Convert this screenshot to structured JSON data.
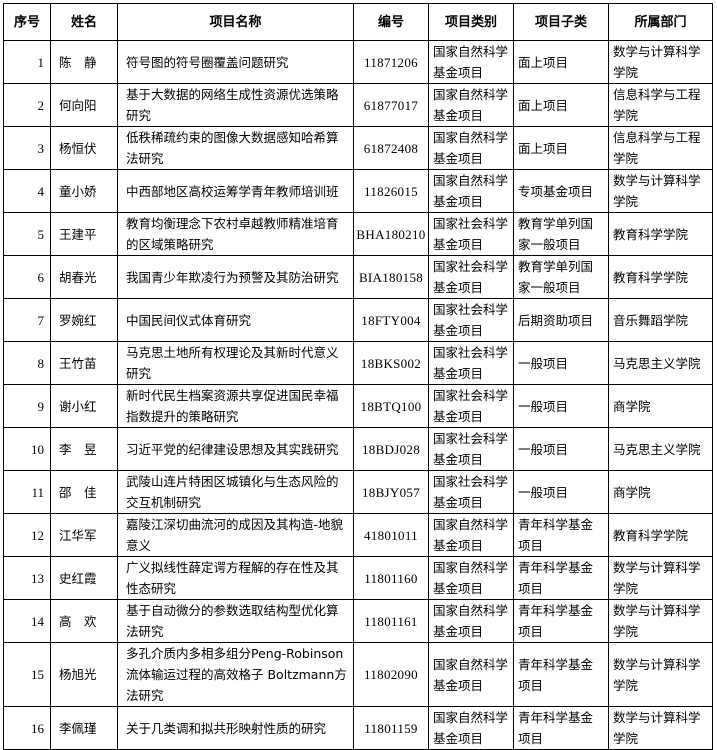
{
  "headers": [
    "序号",
    "姓名",
    "项目名称",
    "编号",
    "项目类别",
    "项目子类",
    "所属部门"
  ],
  "rows": [
    {
      "no": "1",
      "name": "陈　静",
      "title": "符号图的符号圈覆盖问题研究",
      "code": "11871206",
      "category": "国家自然科学基金项目",
      "subcategory": "面上项目",
      "dept": "数学与计算科学学院"
    },
    {
      "no": "2",
      "name": "何向阳",
      "title": "基于大数据的网络生成性资源优选策略研究",
      "code": "61877017",
      "category": "国家自然科学基金项目",
      "subcategory": "面上项目",
      "dept": "信息科学与工程学院"
    },
    {
      "no": "3",
      "name": "杨恒伏",
      "title": "低秩稀疏约束的图像大数据感知哈希算法研究",
      "code": "61872408",
      "category": "国家自然科学基金项目",
      "subcategory": "面上项目",
      "dept": "信息科学与工程学院"
    },
    {
      "no": "4",
      "name": "童小娇",
      "title": "中西部地区高校运筹学青年教师培训班",
      "code": "11826015",
      "category": "国家自然科学基金项目",
      "subcategory": "专项基金项目",
      "dept": "数学与计算科学学院"
    },
    {
      "no": "5",
      "name": "王建平",
      "title": "教育均衡理念下农村卓越教师精准培育的区域策略研究",
      "code": "BHA180210",
      "category": "国家社会科学基金项目",
      "subcategory": "教育学单列国家一般项目",
      "dept": "教育科学学院"
    },
    {
      "no": "6",
      "name": "胡春光",
      "title": "我国青少年欺凌行为预警及其防治研究",
      "code": "BIA180158",
      "category": "国家社会科学基金项目",
      "subcategory": "教育学单列国家一般项目",
      "dept": "教育科学学院"
    },
    {
      "no": "7",
      "name": "罗婉红",
      "title": "中国民间仪式体育研究",
      "code": "18FTY004",
      "category": "国家社会科学基金项目",
      "subcategory": "后期资助项目",
      "dept": "音乐舞蹈学院"
    },
    {
      "no": "8",
      "name": "王竹苗",
      "title": "马克思土地所有权理论及其新时代意义研究",
      "code": "18BKS002",
      "category": "国家社会科学基金项目",
      "subcategory": "一般项目",
      "dept": "马克思主义学院"
    },
    {
      "no": "9",
      "name": "谢小红",
      "title": "新时代民生档案资源共享促进国民幸福指数提升的策略研究",
      "code": "18BTQ100",
      "category": "国家社会科学基金项目",
      "subcategory": "一般项目",
      "dept": "商学院"
    },
    {
      "no": "10",
      "name": "李　昱",
      "title": "习近平党的纪律建设思想及其实践研究",
      "code": "18BDJ028",
      "category": "国家社会科学基金项目",
      "subcategory": "一般项目",
      "dept": "马克思主义学院"
    },
    {
      "no": "11",
      "name": "邵　佳",
      "title": "武陵山连片特困区城镇化与生态风险的交互机制研究",
      "code": "18BJY057",
      "category": "国家社会科学基金项目",
      "subcategory": "一般项目",
      "dept": "商学院"
    },
    {
      "no": "12",
      "name": "江华军",
      "title": "嘉陵江深切曲流河的成因及其构造-地貌意义",
      "code": "41801011",
      "category": "国家自然科学基金项目",
      "subcategory": "青年科学基金项目",
      "dept": "教育科学学院"
    },
    {
      "no": "13",
      "name": "史红霞",
      "title": "广义拟线性薛定谔方程解的存在性及其性态研究",
      "code": "11801160",
      "category": "国家自然科学基金项目",
      "subcategory": "青年科学基金项目",
      "dept": "数学与计算科学学院"
    },
    {
      "no": "14",
      "name": "高　欢",
      "title": "基于自动微分的参数选取结构型优化算法研究",
      "code": "11801161",
      "category": "国家自然科学基金项目",
      "subcategory": "青年科学基金项目",
      "dept": "数学与计算科学学院"
    },
    {
      "no": "15",
      "name": "杨旭光",
      "title": "多孔介质内多相多组分Peng-Robinson流体输运过程的高效格子 Boltzmann方法研究",
      "code": "11802090",
      "category": "国家自然科学基金项目",
      "subcategory": "青年科学基金项目",
      "dept": "数学与计算科学学院"
    },
    {
      "no": "16",
      "name": "李佩瑾",
      "title": "关于几类调和拟共形映射性质的研究",
      "code": "11801159",
      "category": "国家自然科学基金项目",
      "subcategory": "青年科学基金项目",
      "dept": "数学与计算科学学院"
    }
  ]
}
